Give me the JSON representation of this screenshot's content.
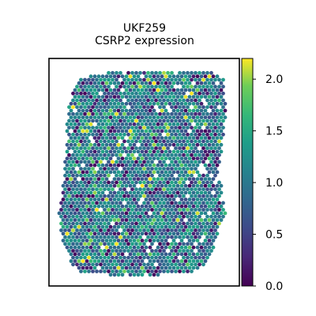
{
  "chart_data": {
    "type": "scatter",
    "title": "UKF259",
    "subtitle": "CSRP2 expression",
    "xlabel": "",
    "ylabel": "",
    "colormap": "viridis",
    "colorbar": {
      "vmin": 0.0,
      "vmax": 2.2,
      "ticks": [
        "0.0",
        "0.5",
        "1.0",
        "1.5",
        "2.0"
      ],
      "tick_values": [
        0.0,
        0.5,
        1.0,
        1.5,
        2.0
      ],
      "placement": "right"
    },
    "spots": {
      "mean_value": 0.9,
      "range": [
        0.0,
        2.2
      ],
      "shape": "hexagonal grid"
    },
    "grid": false,
    "axis_ticks": false
  },
  "colors": {
    "frame": "#000000",
    "background": "#ffffff",
    "viridis_low": "#440154",
    "viridis_mid": "#21918c",
    "viridis_high": "#fde725"
  }
}
